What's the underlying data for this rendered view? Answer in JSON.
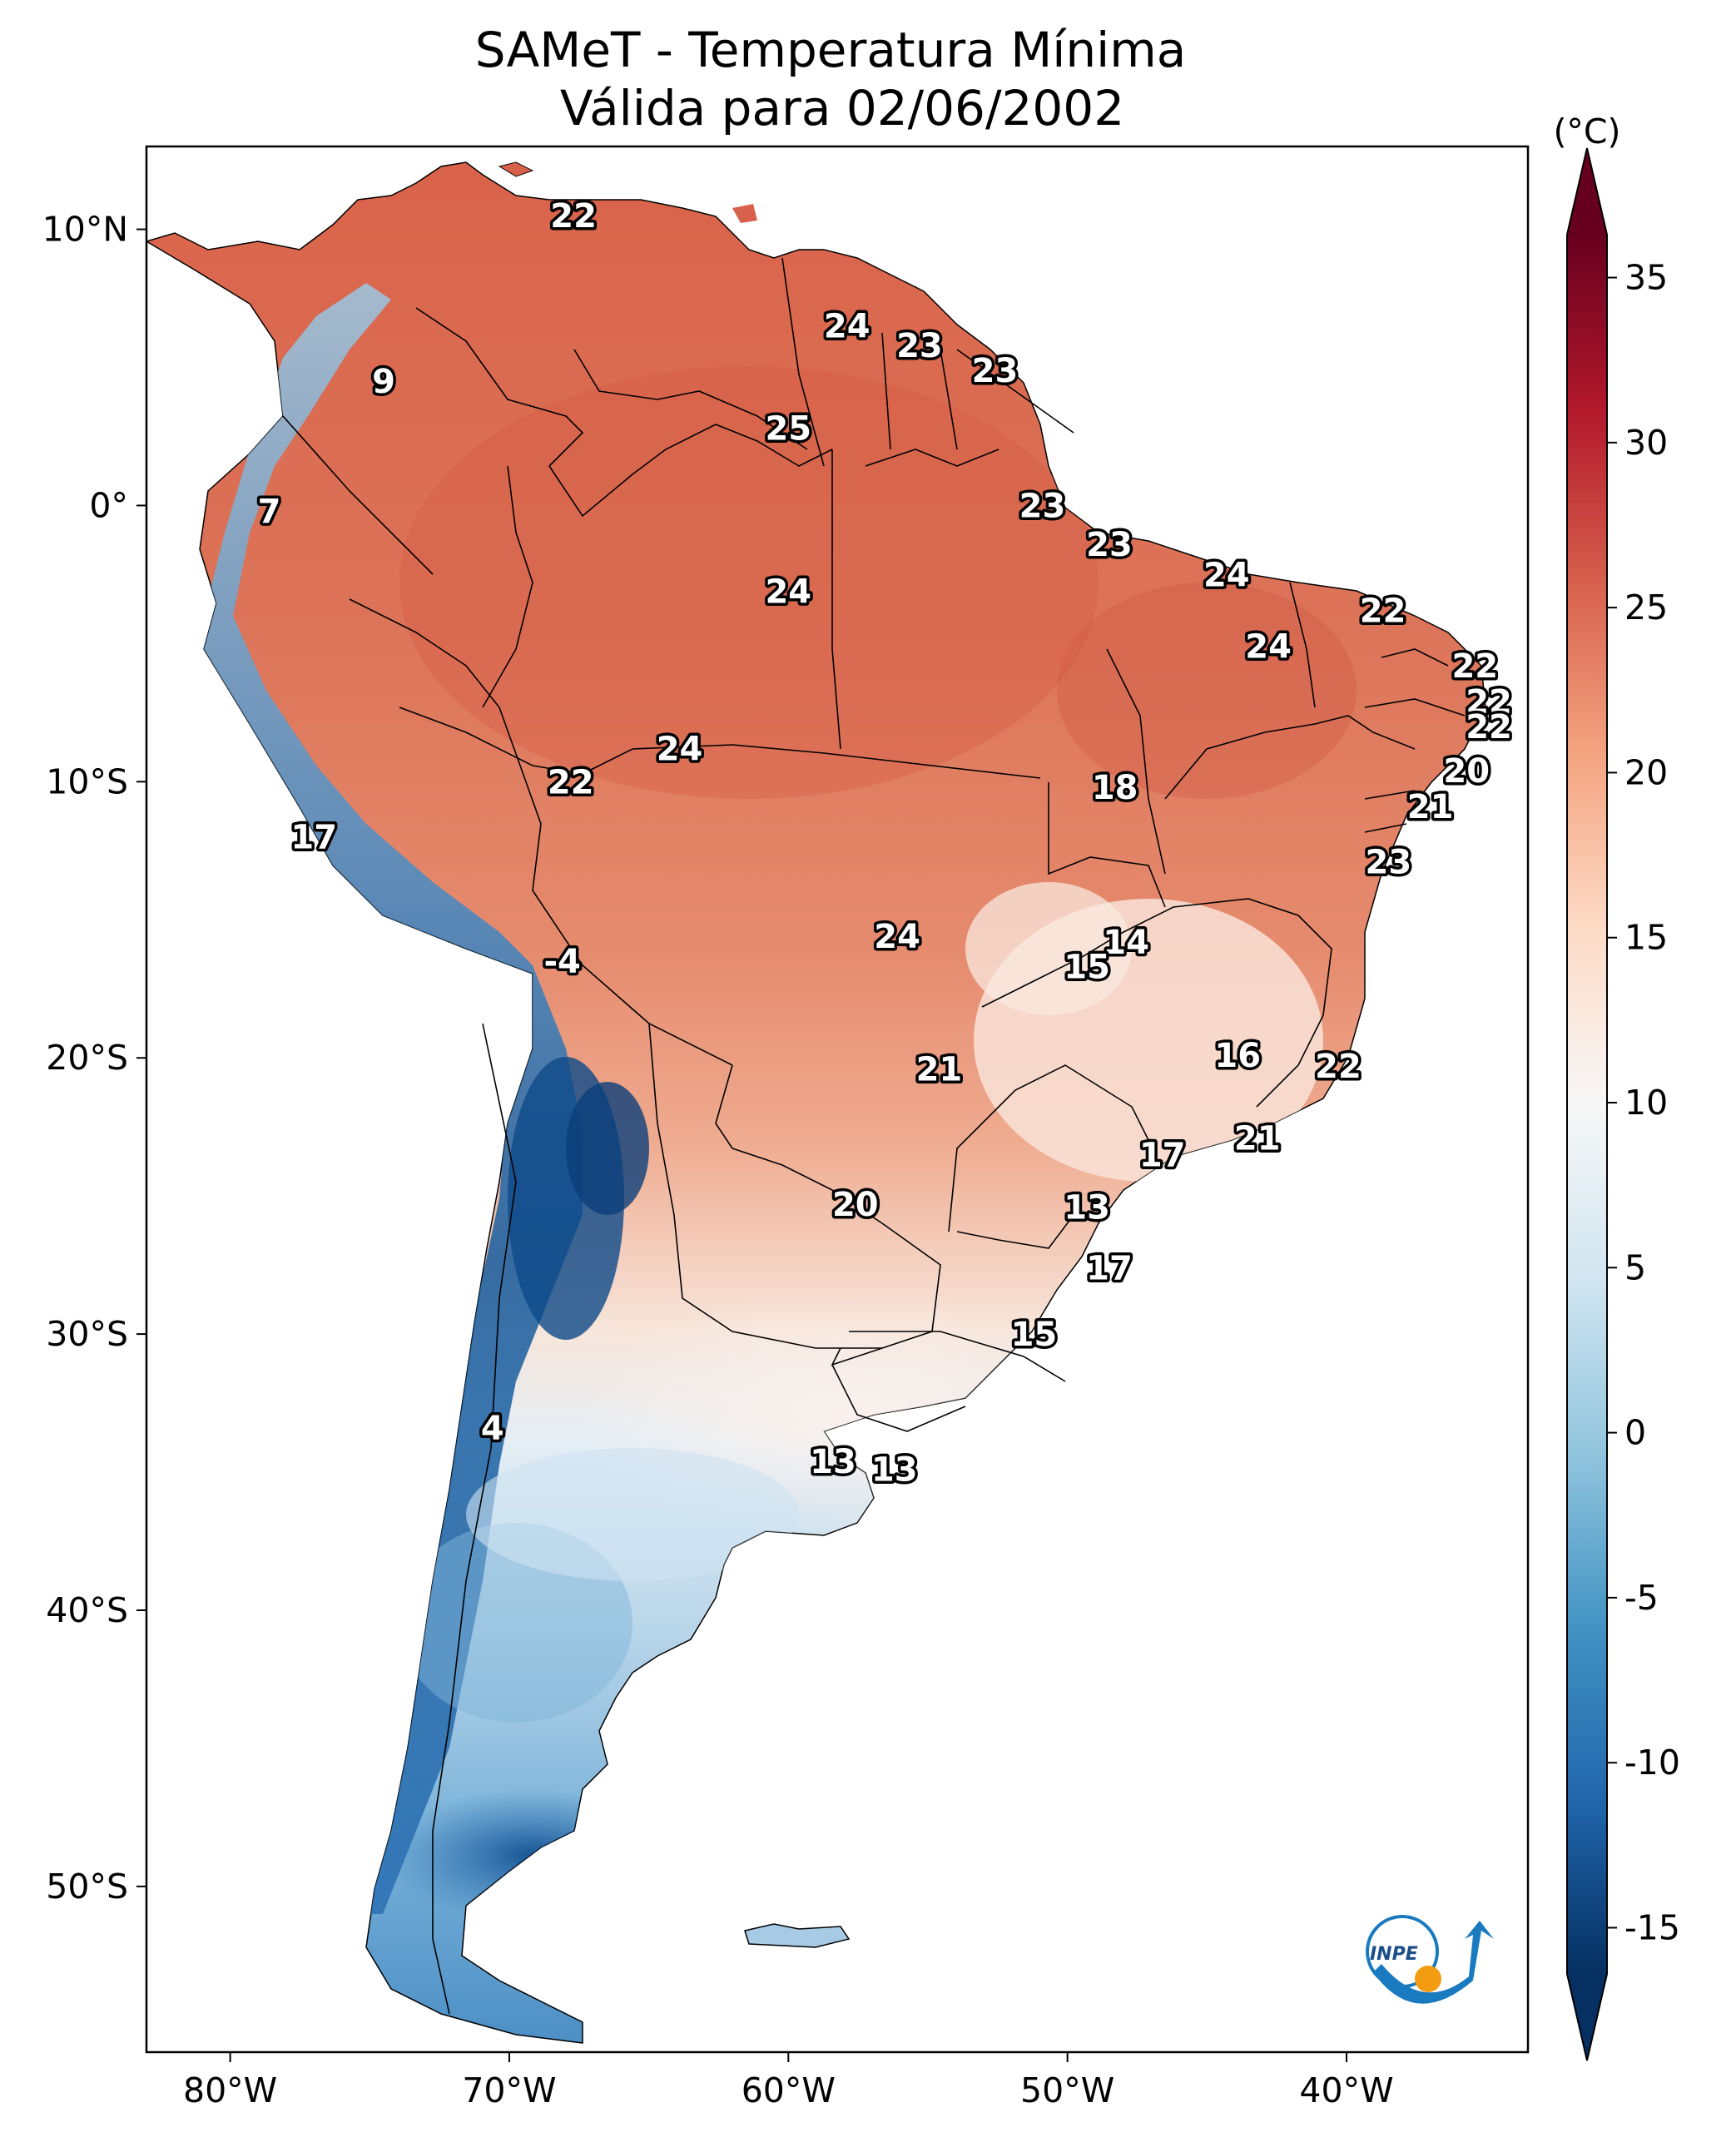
{
  "title_line1": "SAMeT - Temperatura Mínima",
  "title_line2": "Válida para 02/06/2002",
  "colorbar": {
    "unit": "(°C)",
    "ticks": [
      35,
      30,
      25,
      20,
      15,
      10,
      5,
      0,
      -5,
      -10,
      -15
    ],
    "tick_labels": [
      "35",
      "30",
      "25",
      "20",
      "15",
      "10",
      "5",
      "0",
      "-5",
      "-10",
      "-15"
    ],
    "range": [
      -17,
      37
    ],
    "extend": "both",
    "colormap": "RdBu_r",
    "colors": [
      "#053061",
      "#2166ac",
      "#4393c3",
      "#92c5de",
      "#d1e5f0",
      "#f7f7f7",
      "#fddbc7",
      "#f4a582",
      "#d6604d",
      "#b2182b",
      "#67001f"
    ]
  },
  "axes": {
    "lon_labels": [
      "80°W",
      "70°W",
      "60°W",
      "50°W",
      "40°W"
    ],
    "lon_values": [
      -80,
      -70,
      -60,
      -50,
      -40
    ],
    "lat_labels": [
      "10°N",
      "0°",
      "10°S",
      "20°S",
      "30°S",
      "40°S",
      "50°S"
    ],
    "lat_values": [
      10,
      0,
      -10,
      -20,
      -30,
      -40,
      -50
    ],
    "extent": {
      "lon_min": -83,
      "lon_max": -33.5,
      "lat_min": -56,
      "lat_max": 13
    }
  },
  "logo": {
    "text": "INPE",
    "accent": "#1a7abf",
    "sun": "#f39c12"
  },
  "chart_data": {
    "type": "heatmap",
    "title": "SAMeT - Temperatura Mínima\nVálida para 02/06/2002",
    "unit": "(°C)",
    "xlim": [
      -83,
      -33.5
    ],
    "ylim": [
      -56,
      13
    ],
    "grid": false,
    "colorbar_placement": "right",
    "station_values": [
      {
        "lon": -67.7,
        "lat": 10.5,
        "value": "22"
      },
      {
        "lon": -57.9,
        "lat": 6.5,
        "value": "24"
      },
      {
        "lon": -55.3,
        "lat": 5.8,
        "value": "23"
      },
      {
        "lon": -52.6,
        "lat": 4.9,
        "value": "23"
      },
      {
        "lon": -74.5,
        "lat": 4.5,
        "value": "9"
      },
      {
        "lon": -60.0,
        "lat": 2.8,
        "value": "25"
      },
      {
        "lon": -78.6,
        "lat": -0.2,
        "value": "7"
      },
      {
        "lon": -50.9,
        "lat": 0.0,
        "value": "23"
      },
      {
        "lon": -48.5,
        "lat": -1.4,
        "value": "23"
      },
      {
        "lon": -44.3,
        "lat": -2.5,
        "value": "24"
      },
      {
        "lon": -60.0,
        "lat": -3.1,
        "value": "24"
      },
      {
        "lon": -38.7,
        "lat": -3.8,
        "value": "22"
      },
      {
        "lon": -42.8,
        "lat": -5.1,
        "value": "24"
      },
      {
        "lon": -35.4,
        "lat": -5.8,
        "value": "22"
      },
      {
        "lon": -34.9,
        "lat": -7.1,
        "value": "22"
      },
      {
        "lon": -34.9,
        "lat": -8.0,
        "value": "22"
      },
      {
        "lon": -63.9,
        "lat": -8.8,
        "value": "24"
      },
      {
        "lon": -35.7,
        "lat": -9.6,
        "value": "20"
      },
      {
        "lon": -67.8,
        "lat": -10.0,
        "value": "22"
      },
      {
        "lon": -48.3,
        "lat": -10.2,
        "value": "18"
      },
      {
        "lon": -37.0,
        "lat": -10.9,
        "value": "21"
      },
      {
        "lon": -77.0,
        "lat": -12.0,
        "value": "17"
      },
      {
        "lon": -38.5,
        "lat": -12.9,
        "value": "23"
      },
      {
        "lon": -68.1,
        "lat": -16.5,
        "value": "-4"
      },
      {
        "lon": -47.9,
        "lat": -15.8,
        "value": "14"
      },
      {
        "lon": -49.3,
        "lat": -16.7,
        "value": "15"
      },
      {
        "lon": -56.1,
        "lat": -15.6,
        "value": "24"
      },
      {
        "lon": -43.9,
        "lat": -19.9,
        "value": "16"
      },
      {
        "lon": -54.6,
        "lat": -20.4,
        "value": "21"
      },
      {
        "lon": -40.3,
        "lat": -20.3,
        "value": "22"
      },
      {
        "lon": -43.2,
        "lat": -22.9,
        "value": "21"
      },
      {
        "lon": -46.6,
        "lat": -23.5,
        "value": "17"
      },
      {
        "lon": -57.6,
        "lat": -25.3,
        "value": "20"
      },
      {
        "lon": -49.3,
        "lat": -25.4,
        "value": "13"
      },
      {
        "lon": -48.5,
        "lat": -27.6,
        "value": "17"
      },
      {
        "lon": -51.2,
        "lat": -30.0,
        "value": "15"
      },
      {
        "lon": -70.6,
        "lat": -33.4,
        "value": "4"
      },
      {
        "lon": -58.4,
        "lat": -34.6,
        "value": "13"
      },
      {
        "lon": -56.2,
        "lat": -34.9,
        "value": "13"
      }
    ]
  }
}
